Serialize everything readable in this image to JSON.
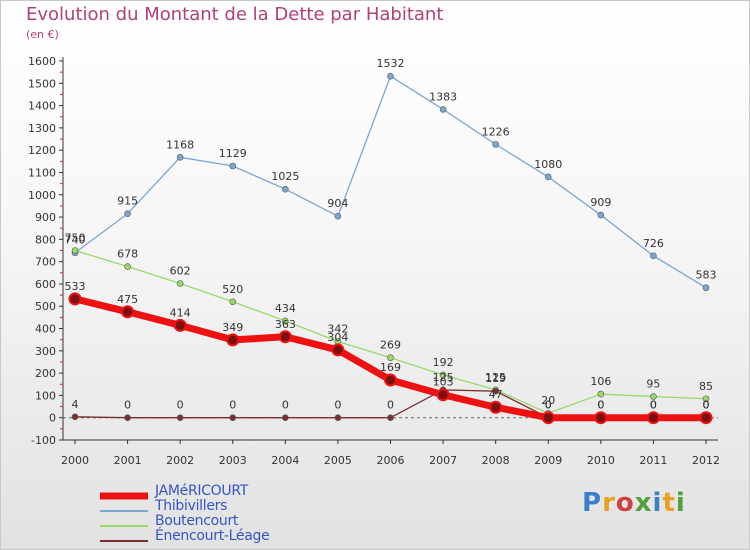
{
  "header": {
    "title": "Evolution du Montant de la Dette par Habitant",
    "subtitle": "(en €)"
  },
  "logo": {
    "text": "Proxiti",
    "colors": [
      "#3a7fc8",
      "#e8a020",
      "#d04040",
      "#50a040",
      "#3a7fc8",
      "#e8a020",
      "#50a040"
    ]
  },
  "chart_data": {
    "type": "line",
    "x": [
      "2000",
      "2001",
      "2002",
      "2003",
      "2004",
      "2005",
      "2006",
      "2007",
      "2008",
      "2009",
      "2010",
      "2011",
      "2012"
    ],
    "ylim": [
      -100,
      1600
    ],
    "yticks": [
      -100,
      0,
      100,
      200,
      300,
      400,
      500,
      600,
      700,
      800,
      900,
      1000,
      1100,
      1200,
      1300,
      1400,
      1500,
      1600
    ],
    "grid": false,
    "legend_position": "bottom-left",
    "series": [
      {
        "name": "JAMéRICOURT",
        "color": "#ee1111",
        "width": 7,
        "values": [
          533,
          475,
          414,
          349,
          363,
          304,
          169,
          103,
          47,
          0,
          0,
          0,
          0
        ],
        "labels": [
          "533",
          "475",
          "414",
          "349",
          "363",
          "304",
          "169",
          "103",
          "47",
          "0",
          "0",
          "0",
          "0"
        ]
      },
      {
        "name": "Thibivillers",
        "color": "#7aa6d2",
        "width": 1.3,
        "values": [
          740,
          915,
          1168,
          1129,
          1025,
          904,
          1532,
          1383,
          1226,
          1080,
          909,
          726,
          583
        ],
        "labels": [
          "740",
          "915",
          "1168",
          "1129",
          "1025",
          "904",
          "1532",
          "1383",
          "1226",
          "1080",
          "909",
          "726",
          "583"
        ]
      },
      {
        "name": "Boutencourt",
        "color": "#9ad86a",
        "width": 1.3,
        "values": [
          750,
          678,
          602,
          520,
          434,
          342,
          269,
          192,
          125,
          20,
          106,
          95,
          85
        ],
        "labels": [
          "750",
          "678",
          "602",
          "520",
          "434",
          "342",
          "269",
          "192",
          "125",
          "20",
          "106",
          "95",
          "85"
        ]
      },
      {
        "name": "Énencourt-Léage",
        "color": "#7a3030",
        "width": 1.3,
        "values": [
          4,
          0,
          0,
          0,
          0,
          0,
          0,
          125,
          119,
          0,
          0,
          0,
          0
        ],
        "labels": [
          "4",
          "0",
          "0",
          "0",
          "0",
          "0",
          "0",
          "125",
          "119",
          "0",
          "0",
          "0",
          "0"
        ]
      }
    ]
  }
}
